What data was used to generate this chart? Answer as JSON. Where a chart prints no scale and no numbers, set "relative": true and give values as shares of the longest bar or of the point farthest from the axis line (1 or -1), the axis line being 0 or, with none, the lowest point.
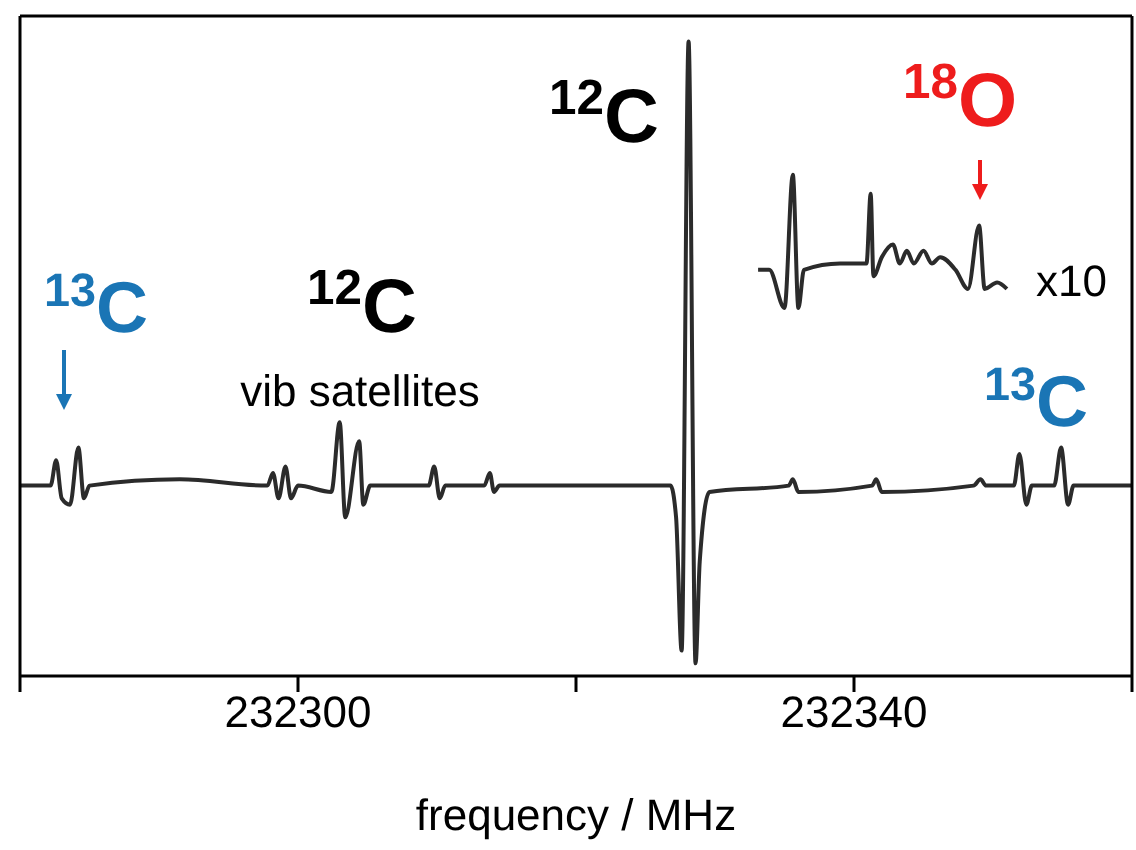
{
  "chart_data": {
    "type": "line",
    "relative": true,
    "xlabel": "frequency / MHz",
    "xlim": [
      232280,
      232360
    ],
    "xticks": [
      {
        "value": 232280,
        "label": null
      },
      232300,
      {
        "value": 232320,
        "label": null
      },
      232340,
      {
        "value": 232360,
        "label": null
      }
    ],
    "marker": "none",
    "series": [
      {
        "color": "#2b2b2b",
        "x": [
          232280.0,
          232282.2,
          232282.6,
          232283.0,
          232283.6,
          232284.2,
          232284.6,
          232285.0,
          232291.5,
          232297.8,
          232298.2,
          232298.6,
          232299.1,
          232299.5,
          232300.0,
          232302.4,
          232303.0,
          232303.4,
          232304.4,
          232304.7,
          232305.2,
          232309.4,
          232309.8,
          232310.2,
          232310.6,
          232313.4,
          232313.8,
          232314.1,
          232314.5,
          232326.8,
          232327.2,
          232327.6,
          232328.1,
          232328.6,
          232328.9,
          232329.6,
          232335.3,
          232335.6,
          232336.0,
          232341.3,
          232341.6,
          232342.0,
          232348.6,
          232349.1,
          232349.5,
          232351.5,
          232351.9,
          232352.4,
          232352.8,
          232354.4,
          232354.9,
          232355.4,
          232355.8,
          232357.0,
          232360.0
        ],
        "values": [
          0.3,
          0.3,
          0.34,
          0.28,
          0.27,
          0.36,
          0.28,
          0.3,
          0.31,
          0.3,
          0.32,
          0.28,
          0.33,
          0.28,
          0.3,
          0.29,
          0.4,
          0.25,
          0.37,
          0.27,
          0.3,
          0.3,
          0.33,
          0.28,
          0.3,
          0.3,
          0.32,
          0.29,
          0.3,
          0.3,
          0.25,
          0.04,
          1.0,
          0.02,
          0.18,
          0.29,
          0.3,
          0.31,
          0.29,
          0.3,
          0.31,
          0.29,
          0.3,
          0.31,
          0.3,
          0.3,
          0.35,
          0.27,
          0.3,
          0.3,
          0.36,
          0.27,
          0.3,
          0.3,
          0.3
        ]
      },
      {
        "color": "#2b2b2b",
        "x": [
          232333.1,
          232333.9,
          232335.0,
          232335.6,
          232336.0,
          232336.4,
          232339.0,
          232340.9,
          232341.2,
          232341.4,
          232342.0,
          232342.8,
          232343.3,
          232343.8,
          232344.3,
          232345.0,
          232345.6,
          232346.2,
          232347.3,
          232348.2,
          232349.0,
          232349.4,
          232350.3,
          232351.0
        ],
        "values": [
          0.64,
          0.64,
          0.58,
          0.79,
          0.58,
          0.64,
          0.65,
          0.65,
          0.76,
          0.63,
          0.66,
          0.68,
          0.65,
          0.67,
          0.65,
          0.67,
          0.65,
          0.66,
          0.64,
          0.61,
          0.71,
          0.61,
          0.62,
          0.61
        ]
      }
    ],
    "annotations": [
      "$^{13}$C",
      "$^{12}$C",
      "vib satellites",
      "$^{12}$C",
      "$^{18}$O",
      "x10",
      "$^{13}$C"
    ]
  }
}
